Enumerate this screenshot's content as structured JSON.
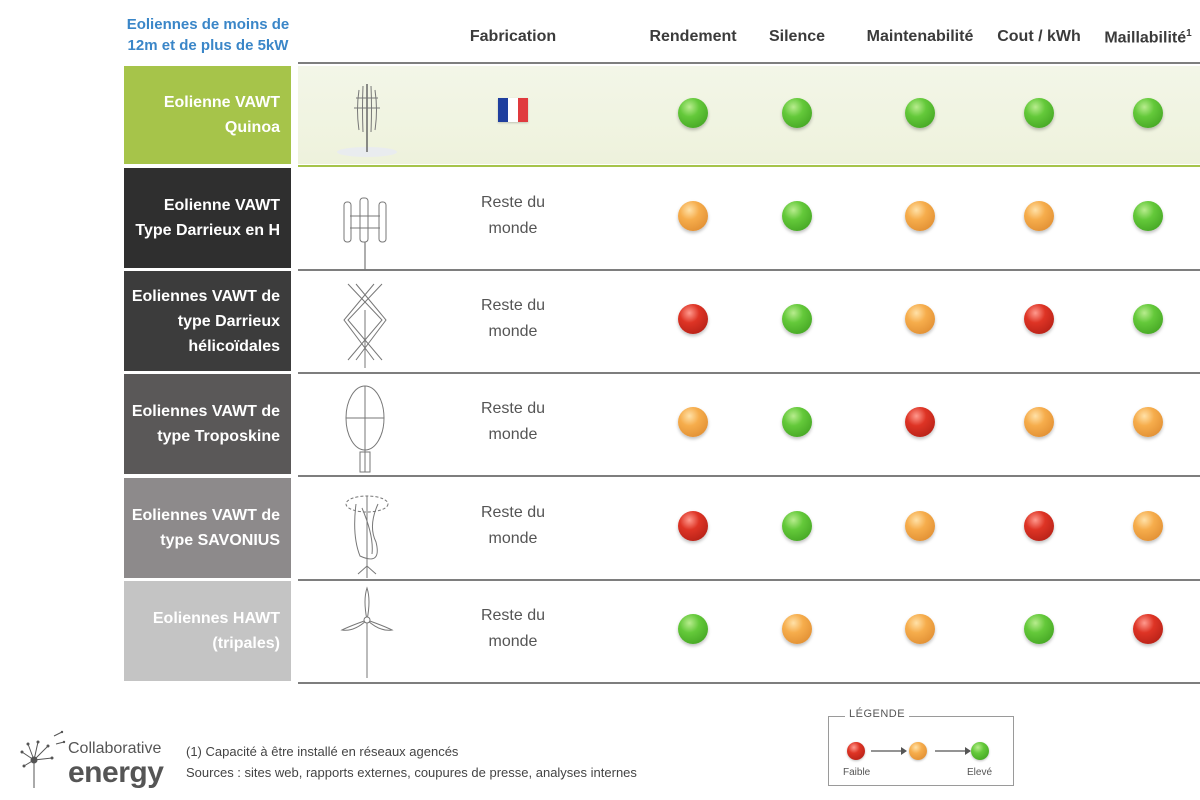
{
  "header": {
    "title_line1": "Eoliennes de moins de",
    "title_line2": "12m et de plus de 5kW",
    "columns": {
      "fabrication": "Fabrication",
      "rendement": "Rendement",
      "silence": "Silence",
      "maintenabilite": "Maintenabilité",
      "cout": "Cout / kWh",
      "maillabilite": "Maillabilité",
      "maillabilite_sup": "1"
    }
  },
  "colors": {
    "header_blue": "#3a86c8",
    "quinoa_green": "#a6c44a",
    "green": "#4fb52b",
    "orange": "#f3a33f",
    "red": "#d22a1f"
  },
  "rows": [
    {
      "label_lines": [
        "Eolienne VAWT",
        "Quinoa"
      ],
      "label_bg": "#a6c44a",
      "fabrication": "flag-france",
      "fabrication_lines": [],
      "ratings": [
        "green",
        "green",
        "green",
        "green",
        "green"
      ]
    },
    {
      "label_lines": [
        "Eolienne VAWT",
        "Type Darrieux en H"
      ],
      "label_bg": "#2f2f2f",
      "fabrication_lines": [
        "Reste du",
        "monde"
      ],
      "ratings": [
        "orange",
        "green",
        "orange",
        "orange",
        "green"
      ]
    },
    {
      "label_lines": [
        "Eoliennes VAWT de",
        "type Darrieux",
        "hélicoïdales"
      ],
      "label_bg": "#3c3c3c",
      "fabrication_lines": [
        "Reste du",
        "monde"
      ],
      "ratings": [
        "red",
        "green",
        "orange",
        "red",
        "green"
      ]
    },
    {
      "label_lines": [
        "Eoliennes VAWT de",
        "type Troposkine"
      ],
      "label_bg": "#5a5858",
      "fabrication_lines": [
        "Reste du",
        "monde"
      ],
      "ratings": [
        "orange",
        "green",
        "red",
        "orange",
        "orange"
      ]
    },
    {
      "label_lines": [
        "Eoliennes VAWT de",
        "type SAVONIUS"
      ],
      "label_bg": "#8d8a8b",
      "fabrication_lines": [
        "Reste du",
        "monde"
      ],
      "ratings": [
        "red",
        "green",
        "orange",
        "red",
        "orange"
      ]
    },
    {
      "label_lines": [
        "Eoliennes HAWT",
        "(tripales)"
      ],
      "label_bg": "#c4c4c4",
      "fabrication_lines": [
        "Reste du",
        "monde"
      ],
      "ratings": [
        "green",
        "orange",
        "orange",
        "green",
        "red"
      ]
    }
  ],
  "footer": {
    "logo_line1": "Collaborative",
    "logo_line2": "energy",
    "note": "(1)  Capacité à être installé en réseaux agencés",
    "sources": "Sources : sites web, rapports externes, coupures de presse, analyses internes"
  },
  "legend": {
    "title": "LÉGENDE",
    "low": "Faible",
    "high": "Elevé",
    "sequence": [
      "red",
      "orange",
      "green"
    ]
  }
}
